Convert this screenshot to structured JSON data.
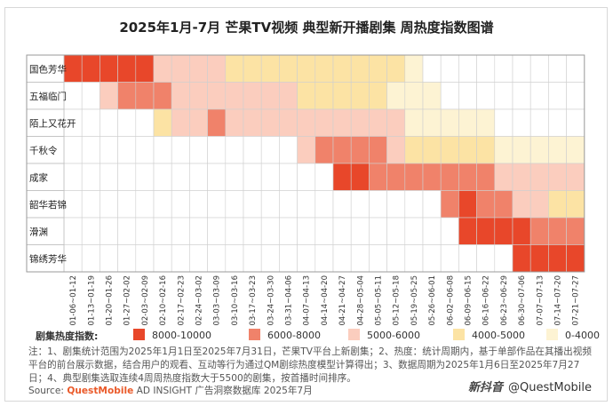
{
  "title": "2025年1月-7月 芒果TV视频 典型新开播剧集 周热度指数图谱",
  "chart_data": {
    "type": "heatmap",
    "title": "2025年1月-7月 芒果TV视频 典型新开播剧集 周热度指数图谱",
    "rows": [
      "国色芳华",
      "五福临门",
      "陌上又花开",
      "千秋令",
      "成家",
      "韶华若锦",
      "滑渊",
      "锦绣芳华"
    ],
    "columns": [
      "01-06~01-12",
      "01-13~01-19",
      "01-20~01-26",
      "01-27~02-02",
      "02-03~02-09",
      "02-10~02-16",
      "02-17~02-23",
      "02-24~03-02",
      "03-03~03-09",
      "03-10~03-16",
      "03-17~03-23",
      "03-24~03-30",
      "03-31~04-06",
      "04-07~04-13",
      "04-14~04-20",
      "04-21~04-27",
      "04-28~05-04",
      "05-05~05-11",
      "05-12~05-18",
      "05-19~05-25",
      "05-26~06-01",
      "06-02~06-08",
      "06-09~06-15",
      "06-16~06-22",
      "06-23~06-29",
      "06-30~07-06",
      "07-07~07-13",
      "07-14~07-20",
      "07-21~07-27"
    ],
    "levels": [
      {
        "label": "8000-10000",
        "color": "#e8472a"
      },
      {
        "label": "6000-8000",
        "color": "#f0826a"
      },
      {
        "label": "5000-6000",
        "color": "#fbcdbe"
      },
      {
        "label": "4000-5000",
        "color": "#fce3a4"
      },
      {
        "label": "0-4000",
        "color": "#fdf3d3"
      }
    ],
    "cells": [
      [
        1,
        1,
        1,
        1,
        1,
        3,
        3,
        3,
        3,
        4,
        4,
        4,
        4,
        4,
        4,
        4,
        4,
        4,
        4,
        5,
        null,
        null,
        null,
        null,
        null,
        null,
        null,
        null,
        null
      ],
      [
        null,
        null,
        3,
        2,
        2,
        2,
        3,
        3,
        3,
        3,
        3,
        3,
        3,
        4,
        4,
        4,
        4,
        4,
        5,
        5,
        5,
        null,
        null,
        null,
        null,
        null,
        null,
        null,
        null
      ],
      [
        null,
        null,
        null,
        null,
        null,
        4,
        3,
        3,
        2,
        3,
        3,
        3,
        3,
        3,
        3,
        3,
        3,
        3,
        3,
        5,
        5,
        5,
        5,
        5,
        null,
        null,
        null,
        null,
        null
      ],
      [
        null,
        null,
        null,
        null,
        null,
        null,
        null,
        null,
        null,
        null,
        null,
        null,
        null,
        3,
        2,
        2,
        2,
        2,
        3,
        4,
        4,
        4,
        4,
        4,
        5,
        5,
        5,
        5,
        5
      ],
      [
        null,
        null,
        null,
        null,
        null,
        null,
        null,
        null,
        null,
        null,
        null,
        null,
        null,
        null,
        null,
        1,
        1,
        2,
        2,
        2,
        2,
        2,
        2,
        2,
        3,
        3,
        3,
        3,
        3
      ],
      [
        null,
        null,
        null,
        null,
        null,
        null,
        null,
        null,
        null,
        null,
        null,
        null,
        null,
        null,
        null,
        null,
        null,
        null,
        null,
        null,
        null,
        2,
        1,
        2,
        2,
        3,
        3,
        4,
        4
      ],
      [
        null,
        null,
        null,
        null,
        null,
        null,
        null,
        null,
        null,
        null,
        null,
        null,
        null,
        null,
        null,
        null,
        null,
        null,
        null,
        null,
        null,
        null,
        1,
        1,
        1,
        1,
        2,
        2,
        2
      ],
      [
        null,
        null,
        null,
        null,
        null,
        null,
        null,
        null,
        null,
        null,
        null,
        null,
        null,
        null,
        null,
        null,
        null,
        null,
        null,
        null,
        null,
        null,
        null,
        null,
        null,
        1,
        1,
        1,
        1
      ]
    ]
  },
  "legend": {
    "title": "剧集热度指数:"
  },
  "note": "注：1、剧集统计范围为2025年1月1日至2025年7月31日，芒果TV平台上新剧集；2、热度：统计周期内，基于单部作品在其播出视频平台的前台展示数据，结合用户的观看、互动等行为通过QM剧综热度模型计算得出；3、数据周期为2025年1月6日至2025年7月27日；4、典型剧集选取连续4周周热度指数大于5500的剧集，按首播时间排序。",
  "source": {
    "prefix": "Source: ",
    "brand": "QuestMobile",
    "text": " AD INSIGHT 广告洞察数据库 2025年7月"
  },
  "watermark": {
    "brand": "新抖音",
    "handle": "@QuestMobile"
  }
}
